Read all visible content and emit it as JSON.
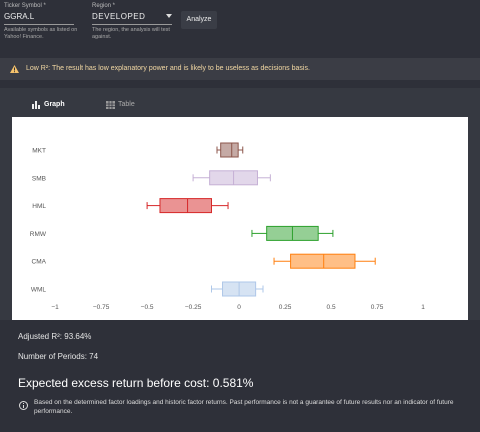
{
  "form": {
    "ticker_label": "Ticker Symbol *",
    "ticker_value": "GGRA.L",
    "ticker_help": "Available symbols as listed on Yahoo! Finance.",
    "region_label": "Region *",
    "region_value": "DEVELOPED",
    "region_help": "The region, the analysis will test against.",
    "button": "Analyze"
  },
  "warning": {
    "strong": "Low R²:",
    "text": "The result has low explanatory power and is likely to be useless as decisions basis."
  },
  "tabs": [
    "Graph",
    "Table"
  ],
  "chart_data": {
    "type": "box",
    "categories": [
      "MKT",
      "SMB",
      "HML",
      "RMW",
      "CMA",
      "WML"
    ],
    "boxes": [
      {
        "min": -0.12,
        "q1": -0.1,
        "median": -0.04,
        "q3": -0.005,
        "max": 0.02,
        "color": "#8c564b"
      },
      {
        "min": -0.25,
        "q1": -0.16,
        "median": -0.03,
        "q3": 0.1,
        "max": 0.17,
        "color": "#c5b0d5"
      },
      {
        "min": -0.5,
        "q1": -0.43,
        "median": -0.28,
        "q3": -0.15,
        "max": -0.06,
        "color": "#d62728"
      },
      {
        "min": 0.07,
        "q1": 0.15,
        "median": 0.29,
        "q3": 0.43,
        "max": 0.51,
        "color": "#2ca02c"
      },
      {
        "min": 0.19,
        "q1": 0.28,
        "median": 0.46,
        "q3": 0.63,
        "max": 0.74,
        "color": "#ff7f0e"
      },
      {
        "min": -0.15,
        "q1": -0.09,
        "median": 0,
        "q3": 0.09,
        "max": 0.13,
        "color": "#aec7e8"
      }
    ],
    "xlim": [
      -1.18,
      1.19
    ],
    "xticks": [
      {
        "value": -1,
        "label": "−1"
      },
      {
        "value": -0.75,
        "label": "−0.75"
      },
      {
        "value": -0.5,
        "label": "−0.5"
      },
      {
        "value": -0.25,
        "label": "−0.25"
      },
      0,
      0.25,
      0.5,
      0.75,
      1
    ]
  },
  "stats": {
    "r2": "Adjusted R²: 93.64%",
    "periods": "Number of Periods: 74",
    "expected": "Expected excess return before cost: 0.581%",
    "disclaimer": "Based on the determined factor loadings and historic factor returns. Past performance is not a guarantee of future results nor an indicator of future performance."
  }
}
